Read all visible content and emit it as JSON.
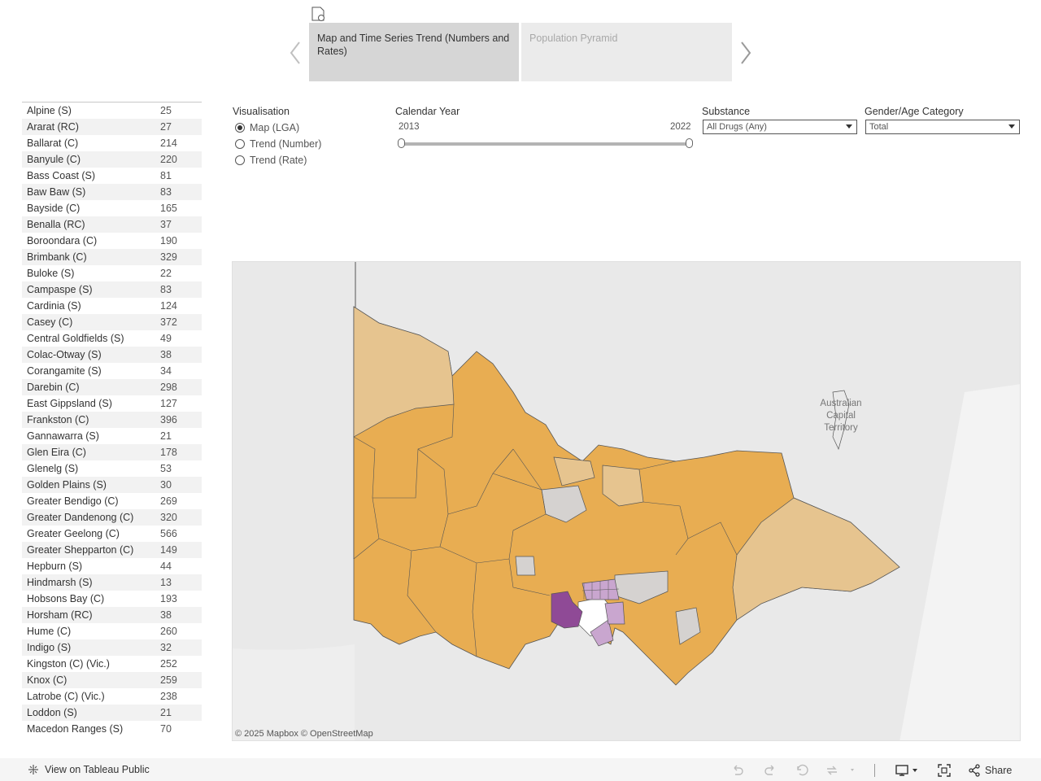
{
  "story": {
    "points": [
      {
        "label": "Map and Time Series Trend (Numbers and Rates)"
      },
      {
        "label": "Population Pyramid"
      }
    ]
  },
  "visualisation": {
    "title": "Visualisation",
    "options": [
      {
        "label": "Map (LGA)",
        "checked": true
      },
      {
        "label": "Trend (Number)",
        "checked": false
      },
      {
        "label": "Trend (Rate)",
        "checked": false
      }
    ]
  },
  "calendar_year": {
    "title": "Calendar Year",
    "start": "2013",
    "end": "2022"
  },
  "substance": {
    "title": "Substance",
    "selected": "All Drugs (Any)"
  },
  "gender_age": {
    "title": "Gender/Age Category",
    "selected": "Total"
  },
  "lga_rows": [
    {
      "name": "Alpine (S)",
      "count": "25"
    },
    {
      "name": "Ararat (RC)",
      "count": "27"
    },
    {
      "name": "Ballarat (C)",
      "count": "214"
    },
    {
      "name": "Banyule (C)",
      "count": "220"
    },
    {
      "name": "Bass Coast (S)",
      "count": "81"
    },
    {
      "name": "Baw Baw (S)",
      "count": "83"
    },
    {
      "name": "Bayside (C)",
      "count": "165"
    },
    {
      "name": "Benalla (RC)",
      "count": "37"
    },
    {
      "name": "Boroondara (C)",
      "count": "190"
    },
    {
      "name": "Brimbank (C)",
      "count": "329"
    },
    {
      "name": "Buloke (S)",
      "count": "22"
    },
    {
      "name": "Campaspe (S)",
      "count": "83"
    },
    {
      "name": "Cardinia (S)",
      "count": "124"
    },
    {
      "name": "Casey (C)",
      "count": "372"
    },
    {
      "name": "Central Goldfields (S)",
      "count": "49"
    },
    {
      "name": "Colac-Otway (S)",
      "count": "38"
    },
    {
      "name": "Corangamite (S)",
      "count": "34"
    },
    {
      "name": "Darebin (C)",
      "count": "298"
    },
    {
      "name": "East Gippsland (S)",
      "count": "127"
    },
    {
      "name": "Frankston (C)",
      "count": "396"
    },
    {
      "name": "Gannawarra (S)",
      "count": "21"
    },
    {
      "name": "Glen Eira (C)",
      "count": "178"
    },
    {
      "name": "Glenelg (S)",
      "count": "53"
    },
    {
      "name": "Golden Plains (S)",
      "count": "30"
    },
    {
      "name": "Greater Bendigo (C)",
      "count": "269"
    },
    {
      "name": "Greater Dandenong (C)",
      "count": "320"
    },
    {
      "name": "Greater Geelong (C)",
      "count": "566"
    },
    {
      "name": "Greater Shepparton (C)",
      "count": "149"
    },
    {
      "name": "Hepburn (S)",
      "count": "44"
    },
    {
      "name": "Hindmarsh (S)",
      "count": "13"
    },
    {
      "name": "Hobsons Bay (C)",
      "count": "193"
    },
    {
      "name": "Horsham (RC)",
      "count": "38"
    },
    {
      "name": "Hume (C)",
      "count": "260"
    },
    {
      "name": "Indigo (S)",
      "count": "32"
    },
    {
      "name": "Kingston (C) (Vic.)",
      "count": "252"
    },
    {
      "name": "Knox (C)",
      "count": "259"
    },
    {
      "name": "Latrobe (C) (Vic.)",
      "count": "238"
    },
    {
      "name": "Loddon (S)",
      "count": "21"
    },
    {
      "name": "Macedon Ranges (S)",
      "count": "70"
    }
  ],
  "map": {
    "territory_label": [
      "Australian",
      "Capital",
      "Territory"
    ],
    "attribution": "© 2025 Mapbox  © OpenStreetMap",
    "colors": {
      "high": "#e8ad52",
      "mid": "#e6c48f",
      "low": "#d5d2d0",
      "purple_dark": "#8f4a96",
      "purple_light": "#c9a6cf",
      "land": "#e9e9e9",
      "sea": "#ffffff"
    }
  },
  "footer": {
    "tableau_link": "View on Tableau Public",
    "share_label": "Share"
  }
}
